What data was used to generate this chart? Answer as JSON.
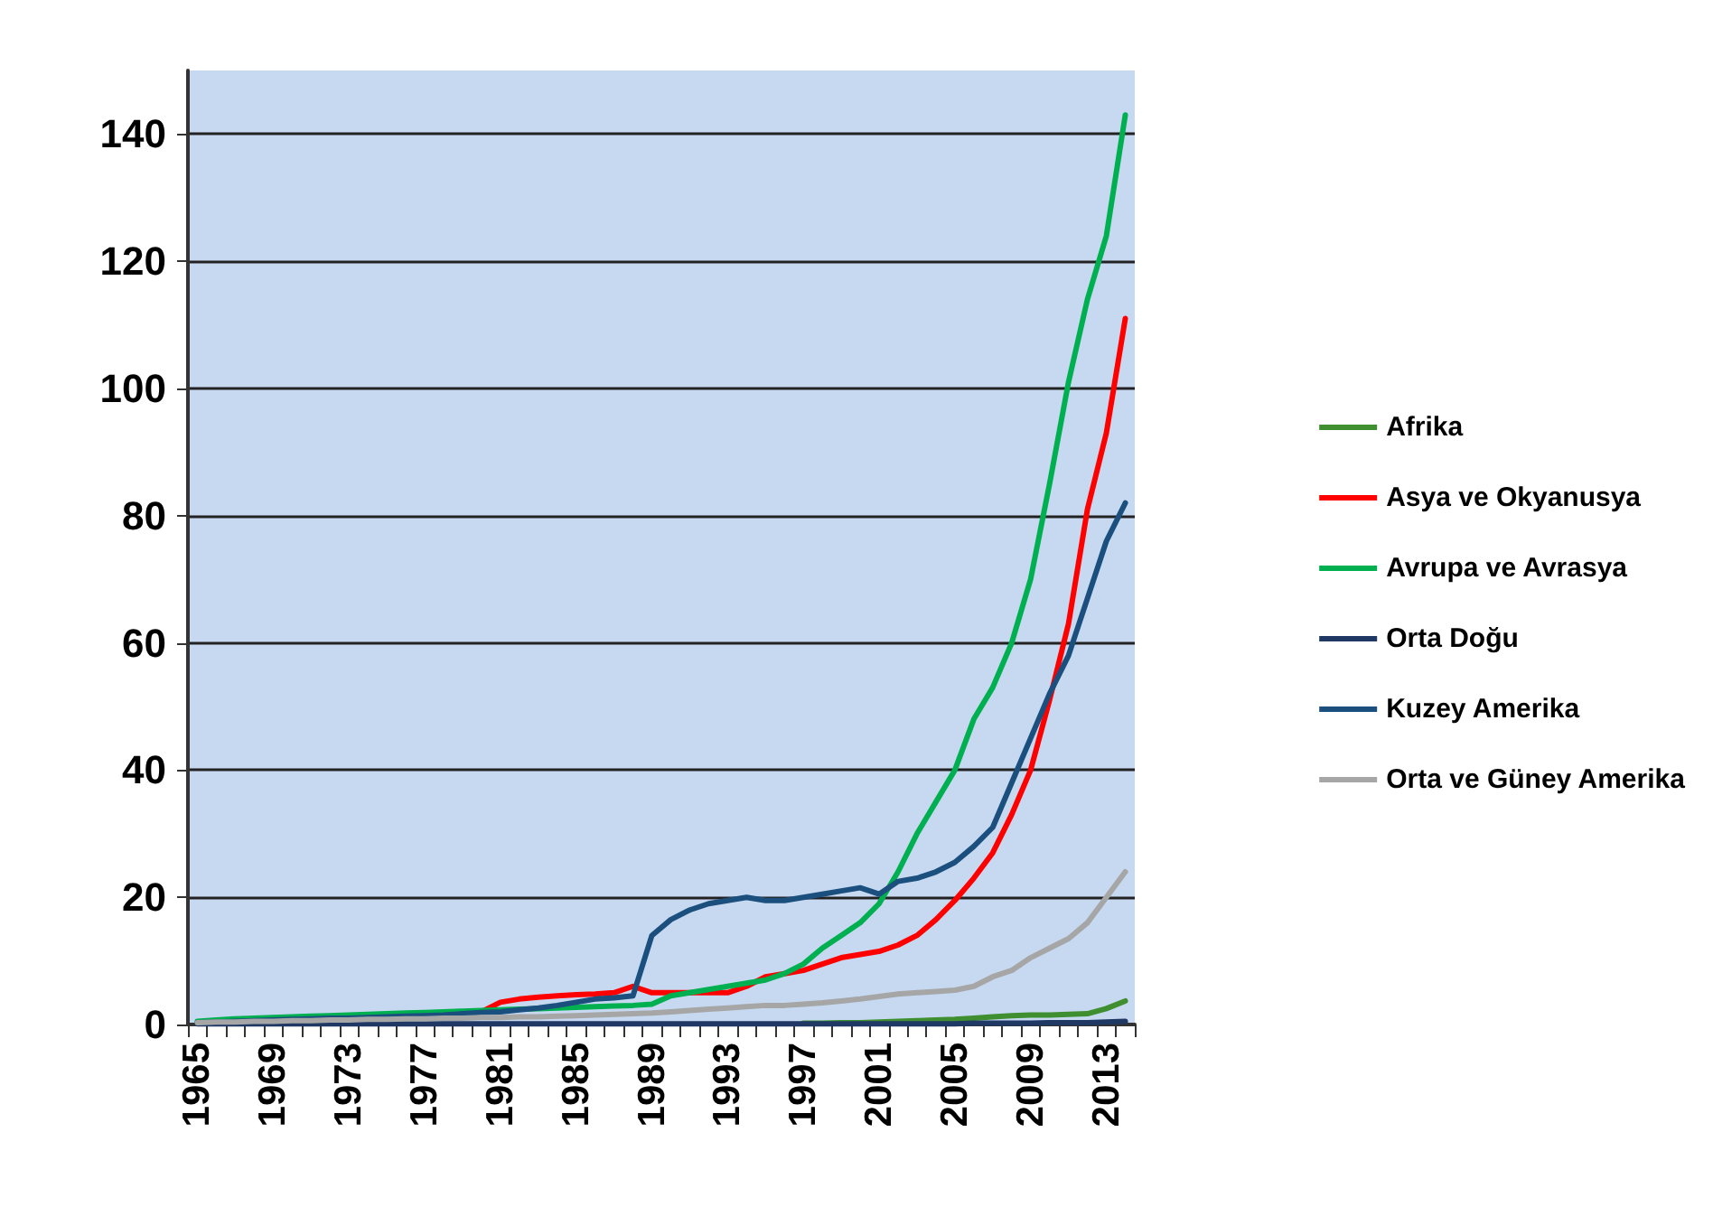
{
  "chart_data": {
    "type": "line",
    "categories": [
      "1965",
      null,
      null,
      null,
      "1969",
      null,
      null,
      null,
      "1973",
      null,
      null,
      null,
      "1977",
      null,
      null,
      null,
      "1981",
      null,
      null,
      null,
      "1985",
      null,
      null,
      null,
      "1989",
      null,
      null,
      null,
      "1993",
      null,
      null,
      null,
      "1997",
      null,
      null,
      null,
      "2001",
      null,
      null,
      null,
      "2005",
      null,
      null,
      null,
      "2009",
      null,
      null,
      null,
      "2013",
      null
    ],
    "series": [
      {
        "name": "Afrika",
        "color": "#3f8f30",
        "values": [
          null,
          null,
          null,
          null,
          null,
          null,
          null,
          null,
          null,
          null,
          null,
          null,
          null,
          null,
          null,
          null,
          null,
          null,
          null,
          null,
          null,
          null,
          null,
          null,
          null,
          null,
          null,
          null,
          null,
          null,
          null,
          null,
          0.2,
          0.2,
          0.3,
          0.3,
          0.4,
          0.5,
          0.6,
          0.7,
          0.8,
          1.0,
          1.2,
          1.4,
          1.5,
          1.5,
          1.6,
          1.7,
          2.5,
          3.7
        ]
      },
      {
        "name": "Asya ve Okyanusya",
        "color": "#ff0000",
        "values": [
          null,
          null,
          null,
          null,
          null,
          null,
          null,
          null,
          null,
          null,
          null,
          null,
          null,
          null,
          null,
          2.0,
          3.5,
          4.0,
          4.3,
          4.5,
          4.7,
          4.8,
          5.0,
          6.0,
          5.0,
          5.0,
          5.0,
          5.0,
          5.0,
          6.0,
          7.5,
          8,
          8.5,
          9.5,
          10.5,
          11,
          11.5,
          12.5,
          14,
          16.5,
          19.5,
          23,
          27,
          33,
          40,
          51,
          63,
          81,
          93,
          111
        ]
      },
      {
        "name": "Avrupa ve Avrasya",
        "color": "#00b050",
        "values": [
          0.5,
          0.7,
          0.9,
          1.0,
          1.1,
          1.2,
          1.3,
          1.4,
          1.5,
          1.6,
          1.7,
          1.8,
          1.9,
          2.0,
          2.1,
          2.2,
          2.3,
          2.4,
          2.5,
          2.6,
          2.7,
          2.8,
          2.9,
          3.0,
          3.2,
          4.5,
          5,
          5.5,
          6,
          6.5,
          7,
          8,
          9.5,
          12,
          14,
          16,
          19,
          24,
          30,
          35,
          40,
          48,
          53,
          60,
          70,
          85,
          101,
          114,
          124,
          143
        ]
      },
      {
        "name": "Orta Doğu",
        "color": "#1f3864",
        "values": [
          0.1,
          0.1,
          0.1,
          0.1,
          0.1,
          0.1,
          0.1,
          0.1,
          0.1,
          0.1,
          0.1,
          0.1,
          0.1,
          0.1,
          0.1,
          0.1,
          0.1,
          0.1,
          0.1,
          0.1,
          0.1,
          0.1,
          0.1,
          0.1,
          0.1,
          0.1,
          0.1,
          0.1,
          0.1,
          0.1,
          0.1,
          0.1,
          0.1,
          0.1,
          0.1,
          0.1,
          0.1,
          0.1,
          0.1,
          0.1,
          0.1,
          0.2,
          0.2,
          0.2,
          0.2,
          0.3,
          0.3,
          0.3,
          0.4,
          0.5
        ]
      },
      {
        "name": "Kuzey Amerika",
        "color": "#1b4f7e",
        "values": [
          0.3,
          0.4,
          0.5,
          0.6,
          0.7,
          0.8,
          0.9,
          1.0,
          1.0,
          1.1,
          1.2,
          1.3,
          1.4,
          1.5,
          1.7,
          1.9,
          2.0,
          2.3,
          2.6,
          3.0,
          3.5,
          4.0,
          4.2,
          4.5,
          14,
          16.5,
          18,
          19,
          19.5,
          20,
          19.5,
          19.5,
          20,
          20.5,
          21,
          21.5,
          20.5,
          22.5,
          23,
          24,
          25.5,
          28,
          31,
          38,
          45,
          52,
          58,
          67,
          76,
          82
        ]
      },
      {
        "name": "Orta ve Güney Amerika",
        "color": "#a6a6a6",
        "values": [
          0.3,
          0.4,
          0.4,
          0.5,
          0.5,
          0.6,
          0.6,
          0.7,
          0.7,
          0.8,
          0.8,
          0.9,
          0.9,
          1.0,
          1.0,
          1.1,
          1.1,
          1.2,
          1.2,
          1.3,
          1.4,
          1.5,
          1.6,
          1.7,
          1.8,
          2,
          2.2,
          2.4,
          2.6,
          2.8,
          3,
          3,
          3.2,
          3.4,
          3.7,
          4,
          4.4,
          4.8,
          5,
          5.2,
          5.4,
          6,
          7.5,
          8.5,
          10.5,
          12,
          13.5,
          16,
          20,
          24
        ]
      }
    ],
    "ylim": [
      0,
      150
    ],
    "yticks": [
      0,
      20,
      40,
      60,
      80,
      100,
      120,
      140
    ],
    "grid": "y",
    "legend": "right",
    "marker": "none",
    "line_style": "solid"
  }
}
